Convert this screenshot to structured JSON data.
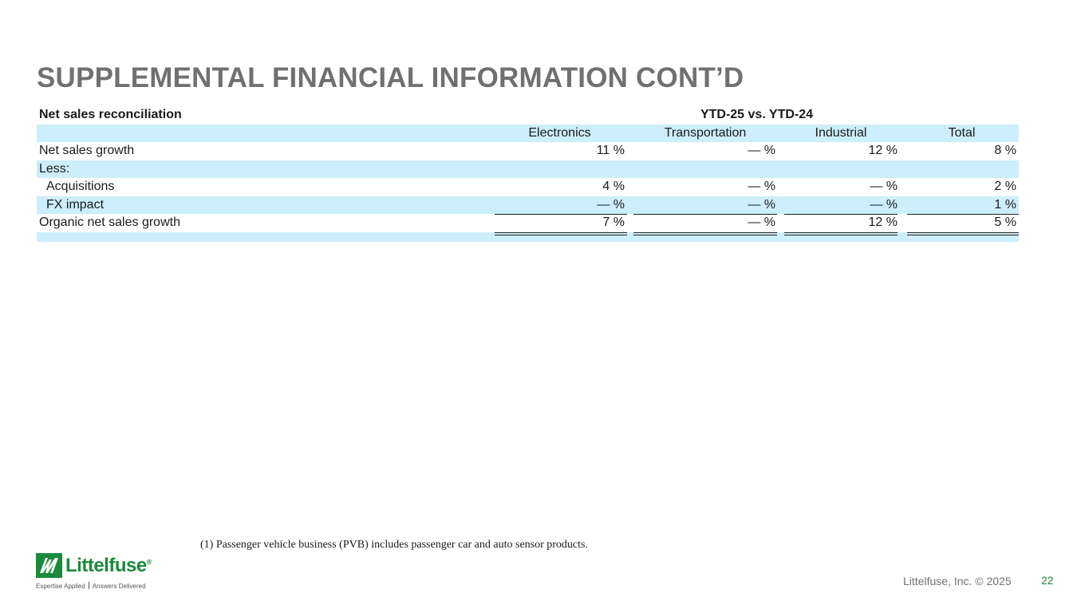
{
  "page": {
    "title": "SUPPLEMENTAL FINANCIAL INFORMATION CONT’D",
    "footnote": "(1) Passenger vehicle business (PVB) includes passenger car and auto sensor products.",
    "copyright": "Littelfuse, Inc. © 2025",
    "page_number": "22"
  },
  "logo": {
    "wordmark": "Littelfuse",
    "registered": "®",
    "tagline_left": "Expertise Applied",
    "tagline_right": "Answers Delivered"
  },
  "table": {
    "header_label": "Net sales reconciliation",
    "period": "YTD-25 vs. YTD-24",
    "columns": [
      "Electronics",
      "Transportation",
      "Industrial",
      "Total"
    ],
    "rows": [
      {
        "label": "Net sales growth",
        "values": [
          "11 %",
          "— %",
          "12 %",
          "8 %"
        ]
      },
      {
        "label": "Less:",
        "values": [
          "",
          "",
          "",
          ""
        ]
      },
      {
        "label": "Acquisitions",
        "values": [
          "4 %",
          "— %",
          "— %",
          "2 %"
        ]
      },
      {
        "label": "FX impact",
        "values": [
          "— %",
          "— %",
          "— %",
          "1 %"
        ]
      },
      {
        "label": "Organic net sales growth",
        "values": [
          "7 %",
          "— %",
          "12 %",
          "5 %"
        ]
      }
    ]
  },
  "colors": {
    "title_gray": "#6f7072",
    "band_blue": "#cdeefc",
    "brand_green": "#1a8a3c"
  }
}
